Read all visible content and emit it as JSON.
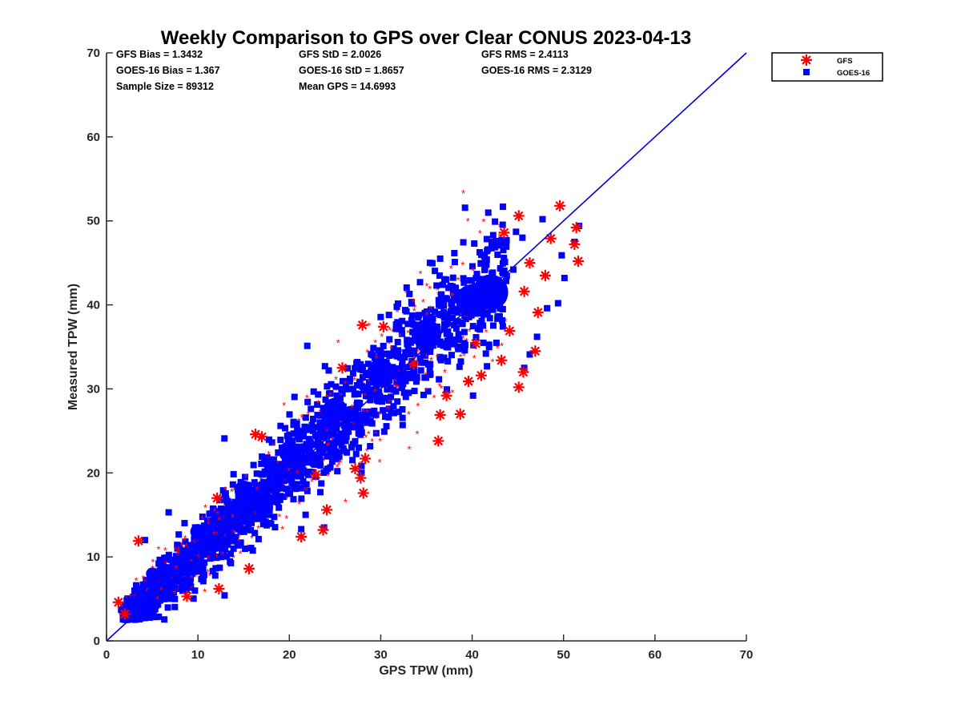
{
  "chart_data": {
    "type": "scatter",
    "title": "Weekly Comparison to GPS over Clear CONUS 2023-04-13",
    "xlabel": "GPS TPW (mm)",
    "ylabel": "Measured TPW (mm)",
    "xlim": [
      0,
      70
    ],
    "ylim": [
      0,
      70
    ],
    "x_ticks": [
      "0",
      "10",
      "20",
      "30",
      "40",
      "50",
      "60",
      "70"
    ],
    "y_ticks": [
      "0",
      "10",
      "20",
      "30",
      "40",
      "50",
      "60",
      "70"
    ],
    "grid": false,
    "legend_position": "top-right, outside plot",
    "stats": {
      "gfs_bias": "GFS Bias = 1.3432",
      "goes_bias": "GOES-16 Bias = 1.367",
      "sample_size": "Sample Size = 89312",
      "gfs_std": "GFS StD = 2.0026",
      "goes_std": "GOES-16 StD = 1.8657",
      "mean_gps": "Mean GPS = 14.6993",
      "gfs_rms": "GFS RMS = 2.4113",
      "goes_rms": "GOES-16 RMS = 2.3129"
    },
    "reference_line": {
      "x": [
        0,
        70
      ],
      "y": [
        0,
        70
      ],
      "color": "#0000dd"
    },
    "series": [
      {
        "name": "GFS",
        "marker": "asterisk",
        "color": "#ff0000",
        "outliers": [
          [
            49.6,
            51.8
          ],
          [
            45.1,
            50.6
          ],
          [
            43.5,
            48.6
          ],
          [
            48.6,
            47.9
          ],
          [
            51.4,
            49.2
          ],
          [
            51.6,
            45.2
          ],
          [
            51.2,
            47.2
          ],
          [
            48.0,
            43.5
          ],
          [
            46.9,
            34.5
          ],
          [
            45.1,
            30.2
          ],
          [
            45.6,
            32.0
          ],
          [
            43.2,
            33.4
          ],
          [
            41.0,
            31.6
          ],
          [
            38.7,
            27.0
          ],
          [
            36.5,
            26.9
          ],
          [
            37.2,
            29.2
          ],
          [
            36.3,
            23.8
          ],
          [
            28.3,
            21.7
          ],
          [
            27.8,
            19.4
          ],
          [
            28.1,
            17.6
          ],
          [
            21.3,
            12.4
          ],
          [
            23.7,
            13.2
          ],
          [
            24.1,
            15.6
          ],
          [
            15.6,
            8.6
          ],
          [
            28.0,
            37.6
          ],
          [
            30.3,
            37.4
          ],
          [
            25.8,
            32.5
          ],
          [
            16.3,
            24.6
          ],
          [
            17.0,
            24.3
          ],
          [
            12.1,
            17.0
          ],
          [
            3.5,
            11.9
          ],
          [
            1.3,
            4.6
          ],
          [
            2.0,
            3.2
          ],
          [
            8.8,
            5.3
          ],
          [
            12.3,
            6.2
          ],
          [
            33.6,
            33.0
          ],
          [
            46.3,
            45.0
          ],
          [
            45.7,
            41.6
          ],
          [
            47.2,
            39.1
          ],
          [
            44.1,
            36.9
          ],
          [
            27.2,
            20.5
          ],
          [
            22.9,
            19.8
          ],
          [
            40.4,
            35.4
          ],
          [
            39.6,
            30.9
          ]
        ]
      },
      {
        "name": "GOES-16",
        "marker": "square",
        "color": "#0000ff",
        "outliers": [
          [
            47.7,
            50.2
          ],
          [
            51.2,
            47.5
          ],
          [
            51.7,
            49.4
          ],
          [
            45.5,
            48.0
          ],
          [
            42.3,
            48.3
          ],
          [
            44.8,
            48.7
          ],
          [
            46.3,
            34.1
          ],
          [
            47.1,
            36.2
          ],
          [
            45.7,
            32.5
          ],
          [
            40.1,
            29.2
          ],
          [
            21.3,
            13.3
          ],
          [
            23.8,
            13.5
          ],
          [
            12.9,
            24.1
          ],
          [
            23.9,
            32.7
          ],
          [
            27.9,
            20.0
          ],
          [
            3.3,
            2.6
          ],
          [
            1.6,
            3.7
          ],
          [
            6.8,
            15.3
          ],
          [
            4.2,
            12.0
          ],
          [
            36.5,
            45.5
          ],
          [
            38.1,
            45.1
          ],
          [
            50.1,
            43.2
          ],
          [
            49.4,
            40.2
          ],
          [
            48.2,
            39.6
          ],
          [
            30.9,
            38.8
          ],
          [
            34.3,
            42.7
          ],
          [
            44.5,
            44.2
          ],
          [
            27.6,
            23.0
          ],
          [
            41.5,
            34.2
          ],
          [
            49.8,
            45.9
          ]
        ]
      }
    ]
  }
}
